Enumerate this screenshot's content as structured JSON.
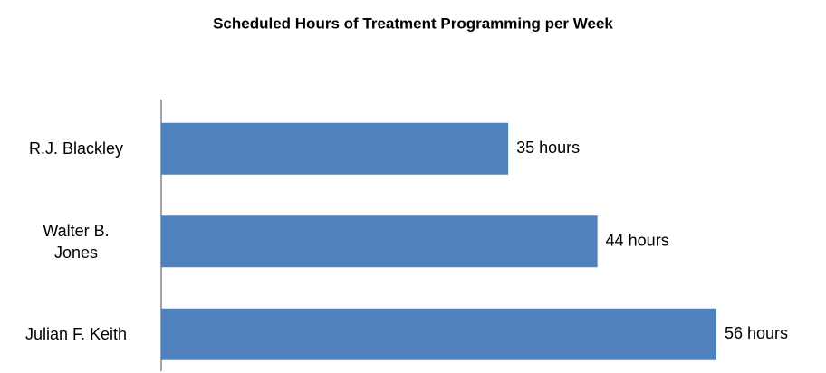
{
  "chart_data": {
    "type": "bar",
    "orientation": "horizontal",
    "title": "Scheduled Hours of Treatment Programming per Week",
    "categories": [
      "R.J. Blackley",
      "Walter B. Jones",
      "Julian F. Keith"
    ],
    "values": [
      35,
      44,
      56
    ],
    "value_labels": [
      "35 hours",
      "44 hours",
      "56 hours"
    ],
    "color": "#4f81bd"
  }
}
